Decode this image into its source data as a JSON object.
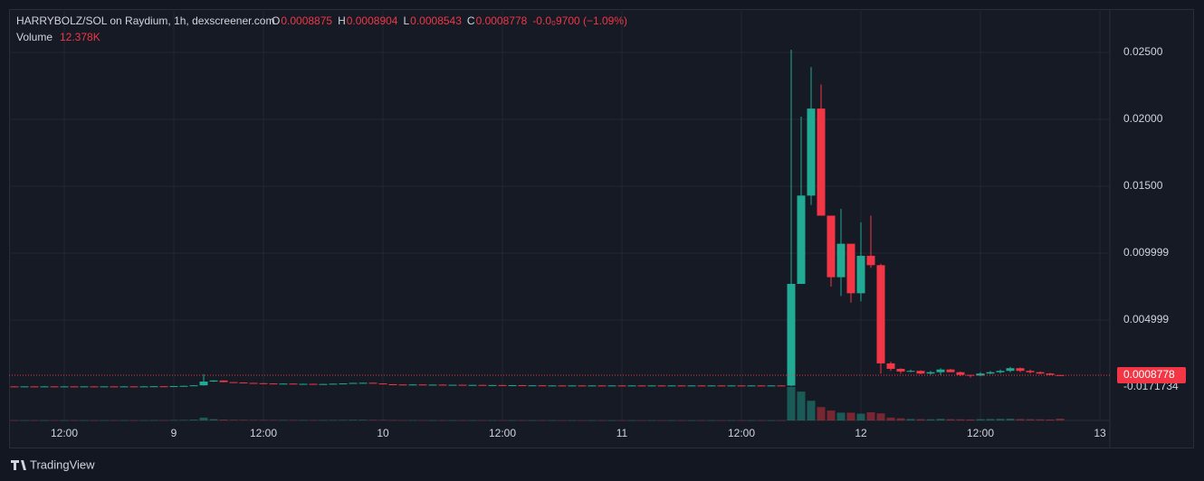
{
  "chart_data": {
    "type": "candlestick",
    "title": "HARRYBOLZ/SOL on Raydium, 1h, dexscreener.com",
    "ohlc_keys": [
      "O",
      "H",
      "L",
      "C"
    ],
    "change_label": "-0.0₀9700 (−1.09%)",
    "volume_title": "Volume",
    "volume_label": "12.378K",
    "axis_overlay_label": "-0.0171734",
    "brand": "TradingView",
    "up_color": "#22ab94",
    "down_color": "#f23645",
    "ylim": [
      -0.00453,
      0.02824
    ],
    "yticks": [
      {
        "value": 0.025,
        "label": "0.02500"
      },
      {
        "value": 0.02,
        "label": "0.02000"
      },
      {
        "value": 0.015,
        "label": "0.01500"
      },
      0.009999,
      0.004999
    ],
    "volume_ylim": [
      0,
      450000
    ],
    "grid": true,
    "categories": [
      null,
      null,
      null,
      null,
      null,
      "12:00",
      null,
      null,
      null,
      null,
      null,
      null,
      null,
      null,
      null,
      null,
      "9",
      null,
      null,
      null,
      null,
      null,
      null,
      null,
      null,
      "12:00",
      null,
      null,
      null,
      null,
      null,
      null,
      null,
      null,
      null,
      null,
      null,
      "10",
      null,
      null,
      null,
      null,
      null,
      null,
      null,
      null,
      null,
      null,
      null,
      "12:00",
      null,
      null,
      null,
      null,
      null,
      null,
      null,
      null,
      null,
      null,
      null,
      "11",
      null,
      null,
      null,
      null,
      null,
      null,
      null,
      null,
      null,
      null,
      null,
      "12:00",
      null,
      null,
      null,
      null,
      null,
      null,
      null,
      null,
      null,
      null,
      null,
      "12",
      null,
      null,
      null,
      null,
      null,
      null,
      null,
      null,
      null,
      null,
      null,
      "12:00",
      null,
      null,
      null,
      null,
      null,
      null,
      null,
      null,
      null,
      null,
      null,
      "13"
    ],
    "open": [
      4e-05,
      3e-05,
      4e-05,
      3e-05,
      4e-05,
      3e-05,
      4e-05,
      3e-05,
      4e-05,
      3e-05,
      4e-05,
      3e-05,
      4e-05,
      3e-05,
      4e-05,
      5e-05,
      4e-05,
      6e-05,
      8e-05,
      0.00012,
      0.0004,
      0.00048,
      0.00036,
      0.00033,
      0.0003,
      0.00028,
      0.00026,
      0.00024,
      0.00025,
      0.00022,
      0.00023,
      0.00021,
      0.00022,
      0.00024,
      0.00026,
      0.0003,
      0.00031,
      0.00026,
      0.0002,
      0.00018,
      0.00017,
      0.00018,
      0.00016,
      0.00017,
      0.00015,
      0.00016,
      0.00014,
      0.00015,
      0.00013,
      0.00014,
      0.00012,
      0.00013,
      0.00011,
      0.00012,
      0.0001,
      0.00011,
      0.0001,
      0.00011,
      0.0001,
      0.00011,
      0.0001,
      0.00011,
      0.0001,
      0.00011,
      0.0001,
      0.00011,
      0.0001,
      0.00011,
      0.0001,
      0.00011,
      0.0001,
      0.00011,
      0.0001,
      0.00011,
      0.0001,
      0.00011,
      0.0001,
      0.00011,
      0.0001,
      0.0077,
      0.0143,
      0.0208,
      0.0128,
      0.0082,
      0.0107,
      0.007,
      0.0098,
      0.0091,
      0.00176,
      0.00135,
      0.00115,
      0.0012,
      0.001,
      0.0011,
      0.0013,
      0.0011,
      0.0009,
      0.00085,
      0.001,
      0.0011,
      0.0012,
      0.0014,
      0.0012,
      0.0011,
      0.001,
      0.0008875,
      null,
      null,
      null,
      null
    ],
    "high": [
      5e-05,
      5e-05,
      5e-05,
      5e-05,
      5e-05,
      5e-05,
      5e-05,
      5e-05,
      5e-05,
      5e-05,
      5e-05,
      5e-05,
      5e-05,
      5e-05,
      6e-05,
      6e-05,
      7e-05,
      9e-05,
      0.00013,
      0.00095,
      0.0005,
      0.00049,
      0.00037,
      0.00034,
      0.00031,
      0.00029,
      0.00027,
      0.00026,
      0.00026,
      0.00024,
      0.00024,
      0.00023,
      0.00025,
      0.00027,
      0.00031,
      0.00032,
      0.00032,
      0.00027,
      0.00021,
      0.00019,
      0.00019,
      0.00019,
      0.00018,
      0.00018,
      0.00017,
      0.00017,
      0.00016,
      0.00016,
      0.00015,
      0.00015,
      0.00014,
      0.00014,
      0.00013,
      0.00013,
      0.00012,
      0.00012,
      0.00012,
      0.00012,
      0.00012,
      0.00012,
      0.00012,
      0.00012,
      0.00012,
      0.00012,
      0.00012,
      0.00012,
      0.00012,
      0.00012,
      0.00012,
      0.00012,
      0.00012,
      0.00012,
      0.00012,
      0.00012,
      0.00012,
      0.00012,
      0.00012,
      0.00012,
      0.0252,
      0.0202,
      0.0239,
      0.0226,
      0.0128,
      0.0133,
      0.0107,
      0.0123,
      0.0128,
      0.0092,
      0.0019,
      0.0014,
      0.0013,
      0.00125,
      0.0012,
      0.0014,
      0.00135,
      0.00115,
      0.0009,
      0.0011,
      0.0012,
      0.0013,
      0.0015,
      0.00145,
      0.0013,
      0.00115,
      0.00105,
      0.0008904,
      null,
      null,
      null,
      null
    ],
    "low": [
      2e-05,
      2e-05,
      2e-05,
      2e-05,
      2e-05,
      2e-05,
      2e-05,
      2e-05,
      2e-05,
      2e-05,
      2e-05,
      2e-05,
      2e-05,
      2e-05,
      3e-05,
      3e-05,
      3e-05,
      5e-05,
      7e-05,
      0.0001,
      0.00038,
      0.00035,
      0.00032,
      0.00029,
      0.00027,
      0.00025,
      0.00023,
      0.00023,
      0.00021,
      0.00021,
      0.0002,
      0.0002,
      0.00021,
      0.00023,
      0.00025,
      0.00029,
      0.00025,
      0.00019,
      0.00017,
      0.00016,
      0.00016,
      0.00015,
      0.00015,
      0.00014,
      0.00014,
      0.00013,
      0.00013,
      0.00012,
      0.00012,
      0.00011,
      0.00011,
      0.0001,
      0.0001,
      9e-05,
      9e-05,
      9e-05,
      9e-05,
      9e-05,
      9e-05,
      9e-05,
      9e-05,
      9e-05,
      9e-05,
      9e-05,
      9e-05,
      9e-05,
      9e-05,
      9e-05,
      9e-05,
      9e-05,
      9e-05,
      9e-05,
      9e-05,
      9e-05,
      9e-05,
      9e-05,
      9e-05,
      9e-05,
      5e-05,
      0.0077,
      0.0136,
      0.0128,
      0.0075,
      0.0068,
      0.0063,
      0.0064,
      0.0089,
      0.001,
      0.0012,
      0.001,
      0.0011,
      0.00095,
      0.0009,
      0.0009,
      0.0011,
      0.0008,
      0.0007,
      0.0008,
      0.00095,
      0.001,
      0.0011,
      0.0011,
      0.001,
      0.00095,
      0.0009,
      0.0008543,
      null,
      null,
      null,
      null
    ],
    "close": [
      3e-05,
      4e-05,
      3e-05,
      4e-05,
      3e-05,
      4e-05,
      3e-05,
      4e-05,
      3e-05,
      4e-05,
      3e-05,
      4e-05,
      3e-05,
      4e-05,
      5e-05,
      4e-05,
      6e-05,
      8e-05,
      0.00012,
      0.0004,
      0.00048,
      0.00036,
      0.00033,
      0.0003,
      0.00028,
      0.00026,
      0.00024,
      0.00025,
      0.00022,
      0.00023,
      0.00021,
      0.00022,
      0.00024,
      0.00026,
      0.0003,
      0.00031,
      0.00026,
      0.0002,
      0.00018,
      0.00017,
      0.00018,
      0.00016,
      0.00017,
      0.00015,
      0.00016,
      0.00014,
      0.00015,
      0.00013,
      0.00014,
      0.00012,
      0.00013,
      0.00011,
      0.00012,
      0.0001,
      0.00011,
      0.0001,
      0.00011,
      0.0001,
      0.00011,
      0.0001,
      0.00011,
      0.0001,
      0.00011,
      0.0001,
      0.00011,
      0.0001,
      0.00011,
      0.0001,
      0.00011,
      0.0001,
      0.00011,
      0.0001,
      0.00011,
      0.0001,
      0.00011,
      0.0001,
      0.00011,
      0.0001,
      0.0077,
      0.0143,
      0.0208,
      0.0128,
      0.0082,
      0.0107,
      0.007,
      0.0098,
      0.0091,
      0.00176,
      0.00135,
      0.00115,
      0.0012,
      0.001,
      0.0011,
      0.0013,
      0.0011,
      0.0009,
      0.00085,
      0.001,
      0.0011,
      0.0012,
      0.0014,
      0.0012,
      0.0011,
      0.001,
      0.0009,
      0.0008778,
      null,
      null,
      null,
      null
    ],
    "volume": [
      1000,
      800,
      1200,
      900,
      1000,
      700,
      1100,
      900,
      800,
      1000,
      900,
      1200,
      800,
      1000,
      1500,
      1300,
      2000,
      3000,
      5000,
      20000,
      9000,
      6000,
      4000,
      3500,
      3000,
      3000,
      2500,
      2500,
      2500,
      2000,
      2000,
      2000,
      2500,
      3000,
      4000,
      4000,
      3500,
      3000,
      2000,
      1500,
      1500,
      1500,
      1200,
      1200,
      1200,
      1000,
      1000,
      1000,
      1000,
      1000,
      900,
      900,
      900,
      900,
      900,
      800,
      800,
      800,
      800,
      800,
      800,
      800,
      800,
      800,
      800,
      800,
      800,
      800,
      800,
      800,
      800,
      800,
      800,
      800,
      800,
      800,
      800,
      800,
      238000,
      205000,
      140000,
      95000,
      70000,
      55000,
      55000,
      48000,
      58000,
      50000,
      20000,
      15000,
      10000,
      9000,
      8000,
      11000,
      9000,
      8000,
      7000,
      9000,
      10000,
      11000,
      12000,
      10000,
      9000,
      8000,
      7000,
      12378,
      null,
      null,
      null,
      null
    ]
  }
}
